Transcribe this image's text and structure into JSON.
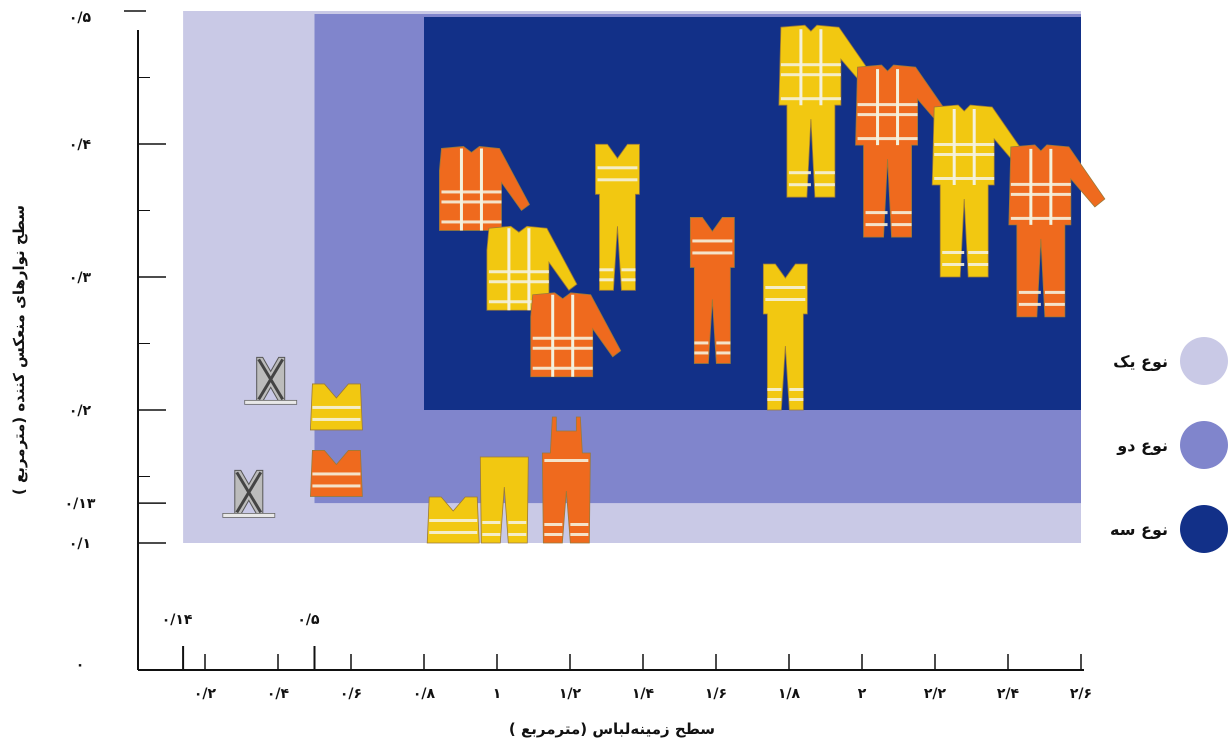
{
  "chart_data": {
    "type": "area",
    "xlabel": "سطح زمینه‌لباس (مترمربع )",
    "ylabel": "سطح نوارهای منعکس کننده (مترمربع )",
    "xlim": [
      0,
      2.6
    ],
    "ylim": [
      0,
      0.5
    ],
    "x_ticks": [
      0.2,
      0.4,
      0.6,
      0.8,
      1,
      1.2,
      1.4,
      1.6,
      1.8,
      2,
      2.2,
      2.4,
      2.6
    ],
    "x_tick_labels": [
      "۰/۲",
      "۰/۴",
      "۰/۶",
      "۰/۸",
      "۱",
      "۱/۲",
      "۱/۴",
      "۱/۶",
      "۱/۸",
      "۲",
      "۲/۲",
      "۲/۴",
      "۲/۶"
    ],
    "x_minor_ticks": [
      0.14,
      0.5
    ],
    "x_minor_tick_labels": [
      "۰/۱۴",
      "۰/۵"
    ],
    "y_ticks": [
      0,
      0.1,
      0.13,
      0.2,
      0.3,
      0.4,
      0.5
    ],
    "y_tick_labels": [
      "۰",
      "۰/۱",
      "۰/۱۳",
      "۰/۲",
      "۰/۳",
      "۰/۴",
      "۰/۵"
    ],
    "regions": [
      {
        "name": "نوع یک",
        "color": "#c9c9e6",
        "x_min": 0.14,
        "y_min": 0.1,
        "x_max": 2.6,
        "y_max": 0.5
      },
      {
        "name": "نوع دو",
        "color": "#8085cc",
        "x_min": 0.5,
        "y_min": 0.13,
        "x_max": 2.6,
        "y_max": 0.5
      },
      {
        "name": "نوع سه",
        "color": "#123088",
        "x_min": 0.8,
        "y_min": 0.2,
        "x_max": 2.6,
        "y_max": 0.5
      }
    ],
    "legend": {
      "placement": "right"
    },
    "garments": [
      {
        "kind": "strap-harness",
        "color": "#c8c8c8",
        "x": 0.38,
        "y": 0.205
      },
      {
        "kind": "strap-harness",
        "color": "#c8c8c8",
        "x": 0.32,
        "y": 0.12
      },
      {
        "kind": "vest",
        "color": "#f2c811",
        "x": 0.56,
        "y": 0.185
      },
      {
        "kind": "vest",
        "color": "#ef6a1e",
        "x": 0.56,
        "y": 0.135
      },
      {
        "kind": "vest",
        "color": "#f2c811",
        "x": 0.88,
        "y": 0.1
      },
      {
        "kind": "trousers",
        "color": "#f2c811",
        "x": 1.02,
        "y": 0.1
      },
      {
        "kind": "bib-overall",
        "color": "#ef6a1e",
        "x": 1.19,
        "y": 0.1
      },
      {
        "kind": "jacket",
        "color": "#ef6a1e",
        "x": 0.93,
        "y": 0.335
      },
      {
        "kind": "jacket",
        "color": "#f2c811",
        "x": 1.06,
        "y": 0.275
      },
      {
        "kind": "jacket",
        "color": "#ef6a1e",
        "x": 1.18,
        "y": 0.225
      },
      {
        "kind": "vest-trousers",
        "color": "#f2c811",
        "x": 1.33,
        "y": 0.29
      },
      {
        "kind": "vest-trousers",
        "color": "#ef6a1e",
        "x": 1.59,
        "y": 0.235
      },
      {
        "kind": "vest-trousers",
        "color": "#f2c811",
        "x": 1.79,
        "y": 0.2
      },
      {
        "kind": "coverall",
        "color": "#f2c811",
        "x": 1.86,
        "y": 0.36
      },
      {
        "kind": "coverall",
        "color": "#ef6a1e",
        "x": 2.07,
        "y": 0.33
      },
      {
        "kind": "coverall",
        "color": "#f2c811",
        "x": 2.28,
        "y": 0.3
      },
      {
        "kind": "coverall",
        "color": "#ef6a1e",
        "x": 2.49,
        "y": 0.27
      }
    ]
  }
}
